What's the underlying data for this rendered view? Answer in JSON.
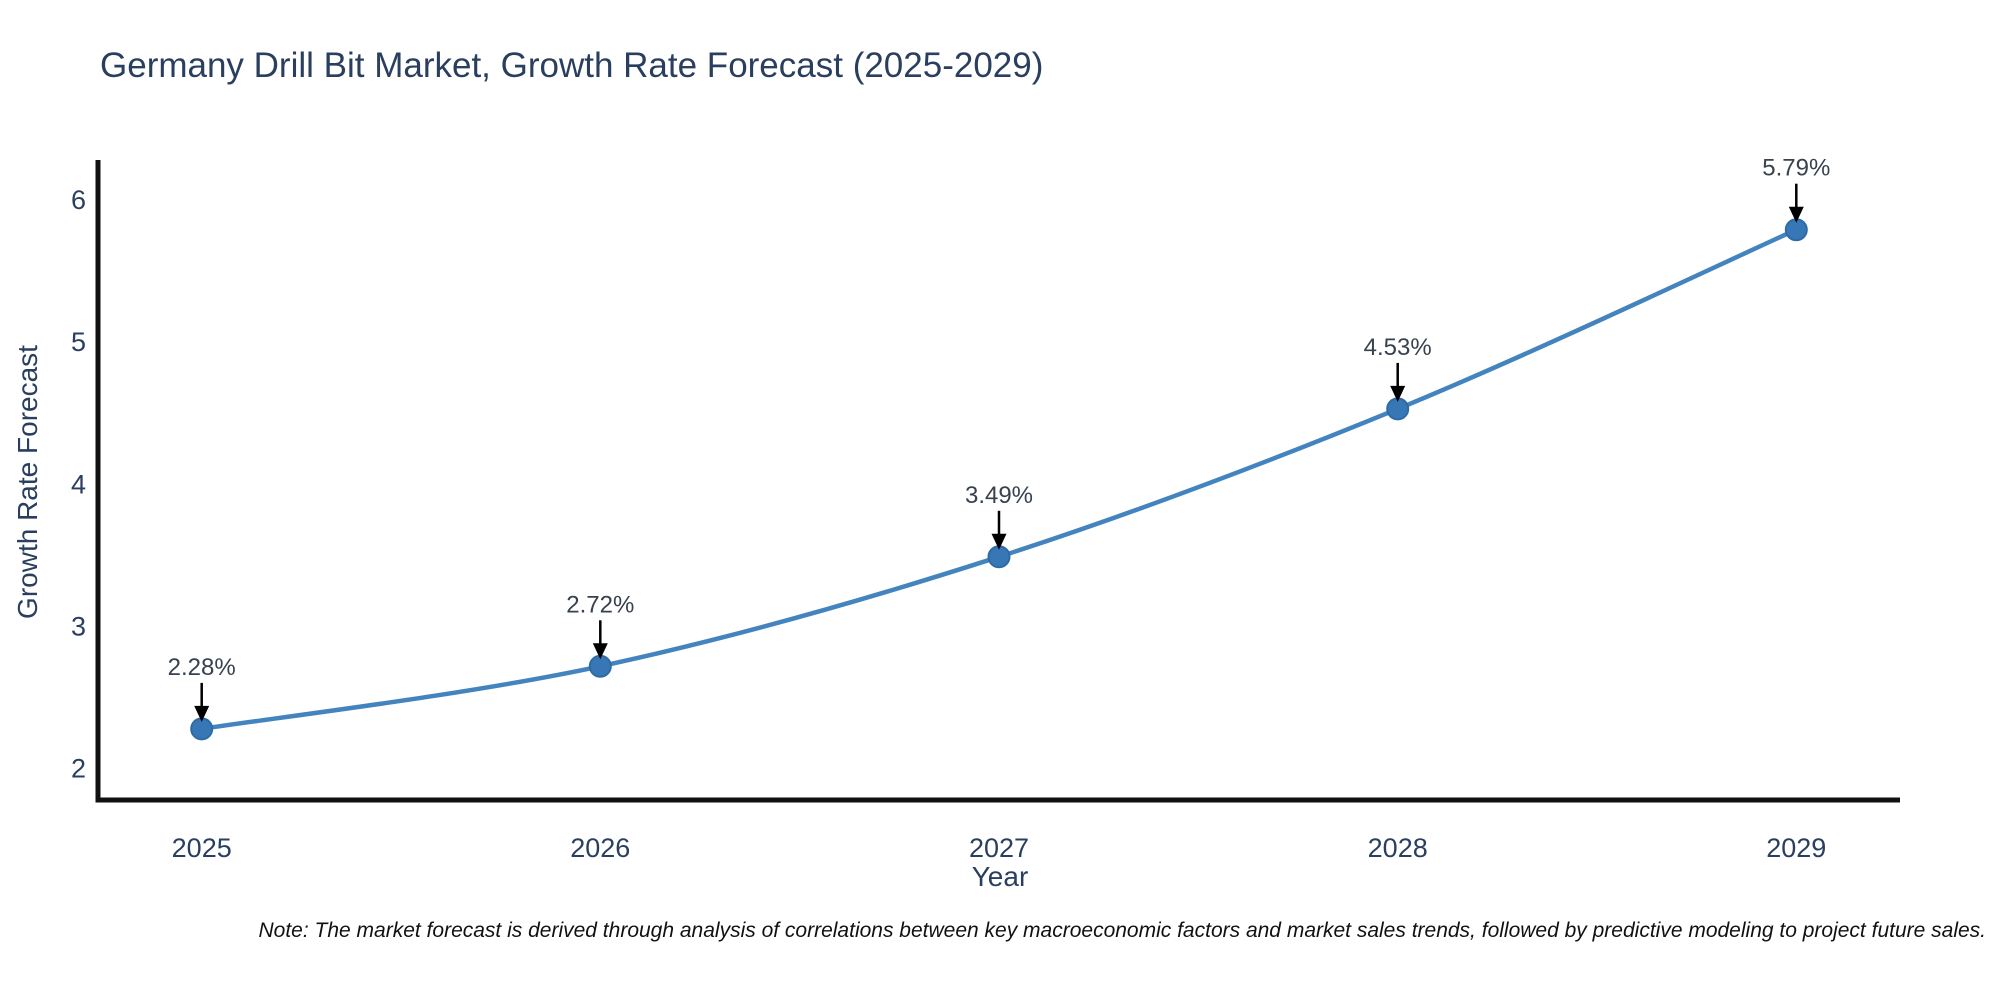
{
  "chart_data": {
    "type": "line",
    "title": "Germany Drill Bit Market, Growth Rate Forecast (2025-2029)",
    "xlabel": "Year",
    "ylabel": "Growth Rate Forecast",
    "x": [
      2025,
      2026,
      2027,
      2028,
      2029
    ],
    "series": [
      {
        "name": "Growth Rate Forecast",
        "values": [
          2.28,
          2.72,
          3.49,
          4.53,
          5.79
        ]
      }
    ],
    "point_labels": [
      "2.28%",
      "2.72%",
      "3.49%",
      "4.53%",
      "5.79%"
    ],
    "yticks": [
      2,
      3,
      4,
      5,
      6
    ],
    "xlim": [
      2024.74,
      2029.26
    ],
    "ylim": [
      1.78,
      6.28
    ],
    "grid": false,
    "legend_position": "none",
    "marker_style": "circle",
    "annotation_arrows": true,
    "note": "Note: The market forecast is derived through analysis of correlations between key macroeconomic factors and market sales trends, followed by predictive modeling to project future sales.",
    "colors": {
      "line": "#4384bf",
      "marker": "#3877b5",
      "marker_edge": "#2e6ba6",
      "axis_text": "#2a3f5f",
      "annotation_text": "#38414e",
      "arrow": "#000000",
      "spine": "#111111",
      "background": "#ffffff"
    }
  }
}
